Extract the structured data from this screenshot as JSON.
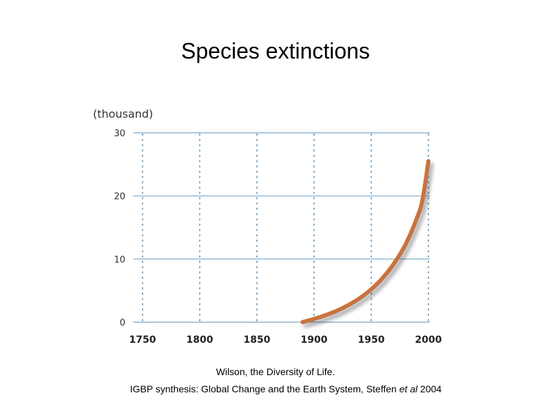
{
  "slide": {
    "title": "Species extinctions",
    "source_line1": "Wilson, the Diversity of Life.",
    "source_line2_prefix": "IGBP synthesis: Global Change and the Earth System, Steffen ",
    "source_line2_italic": "et al",
    "source_line2_suffix": " 2004"
  },
  "colors": {
    "curve": "#c8733f",
    "grid": "#7aa7c9",
    "highlight_tick": "#c8814f"
  },
  "chart_data": {
    "type": "line",
    "title": "Species extinctions",
    "ylabel": "(thousand)",
    "xlabel": "",
    "xlim": [
      1750,
      2000
    ],
    "ylim": [
      0,
      30
    ],
    "x_ticks": [
      "1750",
      "1800",
      "1850",
      "1900",
      "1950",
      "2000"
    ],
    "highlighted_x_tick": "1950",
    "y_ticks": [
      "0",
      "10",
      "20",
      "30"
    ],
    "grid": "horizontal solid, vertical dotted",
    "series": [
      {
        "name": "Species extinctions",
        "x": [
          1890,
          1900,
          1910,
          1920,
          1930,
          1940,
          1950,
          1960,
          1970,
          1980,
          1990,
          1995,
          2000
        ],
        "y": [
          0,
          0.5,
          1.1,
          1.8,
          2.7,
          3.8,
          5.2,
          7.0,
          9.3,
          12.3,
          16.5,
          19.5,
          25.5
        ]
      }
    ]
  }
}
